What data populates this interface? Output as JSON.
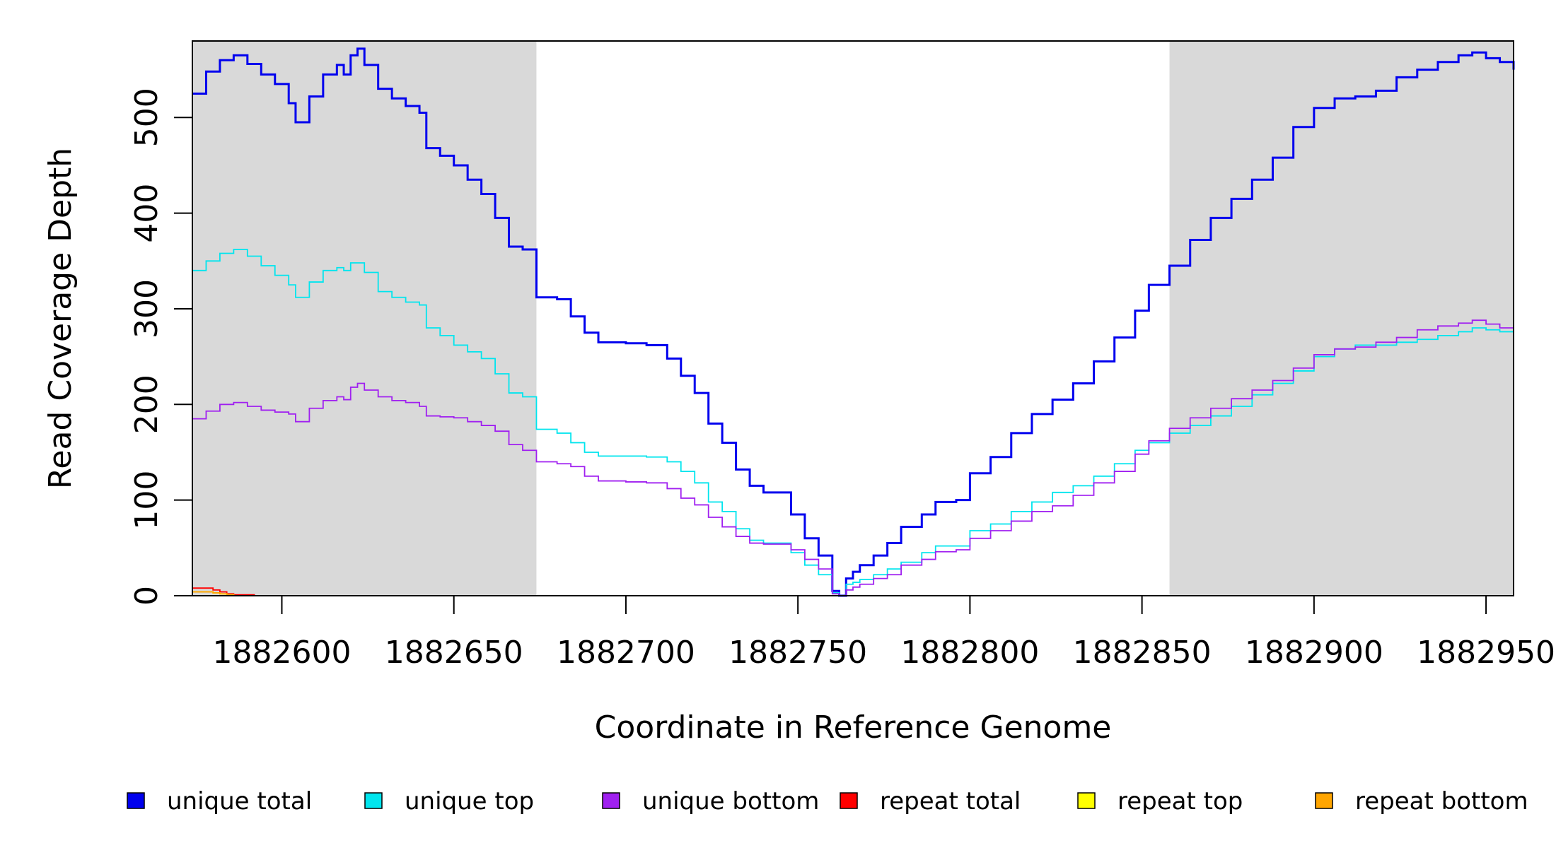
{
  "chart_data": {
    "type": "line",
    "title": "",
    "xlabel": "Coordinate in Reference Genome",
    "ylabel": "Read Coverage Depth",
    "xlim": [
      1882574,
      1882958
    ],
    "ylim": [
      0,
      580
    ],
    "xticks": [
      1882600,
      1882650,
      1882700,
      1882750,
      1882800,
      1882850,
      1882900,
      1882950
    ],
    "yticks": [
      0,
      100,
      200,
      300,
      400,
      500
    ],
    "grid": false,
    "shaded_regions": [
      {
        "x0": 1882574,
        "x1": 1882674,
        "color": "#d9d9d9"
      },
      {
        "x0": 1882858,
        "x1": 1882958,
        "color": "#d9d9d9"
      }
    ],
    "series": [
      {
        "name": "unique total",
        "color": "#0000ee",
        "x": [
          1882574,
          1882578,
          1882582,
          1882586,
          1882590,
          1882594,
          1882598,
          1882602,
          1882604,
          1882608,
          1882612,
          1882616,
          1882618,
          1882620,
          1882622,
          1882624,
          1882628,
          1882632,
          1882636,
          1882640,
          1882642,
          1882646,
          1882650,
          1882654,
          1882658,
          1882662,
          1882666,
          1882670,
          1882674,
          1882680,
          1882684,
          1882688,
          1882692,
          1882700,
          1882706,
          1882712,
          1882716,
          1882720,
          1882724,
          1882728,
          1882732,
          1882736,
          1882740,
          1882744,
          1882748,
          1882752,
          1882756,
          1882760,
          1882762,
          1882764,
          1882766,
          1882768,
          1882772,
          1882776,
          1882780,
          1882786,
          1882790,
          1882796,
          1882800,
          1882806,
          1882812,
          1882818,
          1882824,
          1882830,
          1882836,
          1882842,
          1882848,
          1882852,
          1882858,
          1882864,
          1882870,
          1882876,
          1882882,
          1882888,
          1882894,
          1882900,
          1882906,
          1882912,
          1882918,
          1882924,
          1882930,
          1882936,
          1882942,
          1882946,
          1882950,
          1882954,
          1882958
        ],
        "y": [
          525,
          548,
          560,
          565,
          556,
          545,
          535,
          515,
          495,
          522,
          545,
          555,
          545,
          565,
          572,
          555,
          530,
          520,
          512,
          505,
          468,
          460,
          450,
          435,
          420,
          395,
          365,
          362,
          312,
          310,
          292,
          275,
          265,
          264,
          262,
          248,
          230,
          212,
          180,
          160,
          132,
          115,
          108,
          108,
          85,
          60,
          42,
          5,
          0,
          18,
          25,
          32,
          42,
          55,
          72,
          85,
          98,
          100,
          128,
          145,
          170,
          190,
          205,
          222,
          245,
          270,
          298,
          325,
          345,
          372,
          395,
          415,
          435,
          458,
          490,
          510,
          520,
          522,
          528,
          542,
          550,
          558,
          565,
          568,
          562,
          558,
          550
        ]
      },
      {
        "name": "unique top",
        "color": "#00e5ee",
        "x": [
          1882574,
          1882578,
          1882582,
          1882586,
          1882590,
          1882594,
          1882598,
          1882602,
          1882604,
          1882608,
          1882612,
          1882616,
          1882618,
          1882620,
          1882622,
          1882624,
          1882628,
          1882632,
          1882636,
          1882640,
          1882642,
          1882646,
          1882650,
          1882654,
          1882658,
          1882662,
          1882666,
          1882670,
          1882674,
          1882680,
          1882684,
          1882688,
          1882692,
          1882700,
          1882706,
          1882712,
          1882716,
          1882720,
          1882724,
          1882728,
          1882732,
          1882736,
          1882740,
          1882744,
          1882748,
          1882752,
          1882756,
          1882760,
          1882762,
          1882764,
          1882766,
          1882768,
          1882772,
          1882776,
          1882780,
          1882786,
          1882790,
          1882796,
          1882800,
          1882806,
          1882812,
          1882818,
          1882824,
          1882830,
          1882836,
          1882842,
          1882848,
          1882852,
          1882858,
          1882864,
          1882870,
          1882876,
          1882882,
          1882888,
          1882894,
          1882900,
          1882906,
          1882912,
          1882918,
          1882924,
          1882930,
          1882936,
          1882942,
          1882946,
          1882950,
          1882954,
          1882958
        ],
        "y": [
          340,
          350,
          358,
          362,
          355,
          345,
          335,
          325,
          312,
          328,
          340,
          343,
          340,
          348,
          348,
          338,
          318,
          312,
          307,
          304,
          280,
          272,
          262,
          255,
          248,
          232,
          212,
          208,
          174,
          170,
          160,
          150,
          146,
          146,
          145,
          140,
          130,
          118,
          98,
          88,
          70,
          58,
          55,
          55,
          45,
          32,
          22,
          3,
          0,
          12,
          14,
          17,
          22,
          28,
          35,
          45,
          52,
          52,
          68,
          75,
          88,
          98,
          108,
          115,
          125,
          138,
          152,
          160,
          170,
          178,
          188,
          198,
          210,
          222,
          235,
          250,
          258,
          262,
          262,
          265,
          268,
          272,
          276,
          280,
          278,
          276,
          272
        ]
      },
      {
        "name": "unique bottom",
        "color": "#a020f0",
        "x": [
          1882574,
          1882578,
          1882582,
          1882586,
          1882590,
          1882594,
          1882598,
          1882602,
          1882604,
          1882608,
          1882612,
          1882616,
          1882618,
          1882620,
          1882622,
          1882624,
          1882628,
          1882632,
          1882636,
          1882640,
          1882642,
          1882646,
          1882650,
          1882654,
          1882658,
          1882662,
          1882666,
          1882670,
          1882674,
          1882680,
          1882684,
          1882688,
          1882692,
          1882700,
          1882706,
          1882712,
          1882716,
          1882720,
          1882724,
          1882728,
          1882732,
          1882736,
          1882740,
          1882744,
          1882748,
          1882752,
          1882756,
          1882760,
          1882762,
          1882764,
          1882766,
          1882768,
          1882772,
          1882776,
          1882780,
          1882786,
          1882790,
          1882796,
          1882800,
          1882806,
          1882812,
          1882818,
          1882824,
          1882830,
          1882836,
          1882842,
          1882848,
          1882852,
          1882858,
          1882864,
          1882870,
          1882876,
          1882882,
          1882888,
          1882894,
          1882900,
          1882906,
          1882912,
          1882918,
          1882924,
          1882930,
          1882936,
          1882942,
          1882946,
          1882950,
          1882954,
          1882958
        ],
        "y": [
          185,
          193,
          200,
          202,
          198,
          194,
          192,
          190,
          182,
          196,
          204,
          208,
          205,
          218,
          222,
          215,
          208,
          204,
          202,
          198,
          188,
          187,
          186,
          182,
          178,
          172,
          158,
          152,
          140,
          138,
          135,
          125,
          120,
          119,
          118,
          112,
          102,
          95,
          82,
          72,
          62,
          55,
          54,
          54,
          48,
          38,
          28,
          2,
          0,
          6,
          9,
          12,
          18,
          22,
          32,
          38,
          46,
          48,
          60,
          68,
          78,
          88,
          94,
          105,
          118,
          130,
          148,
          162,
          175,
          186,
          196,
          206,
          215,
          225,
          238,
          252,
          258,
          260,
          265,
          270,
          278,
          282,
          285,
          288,
          284,
          280,
          276
        ]
      },
      {
        "name": "repeat total",
        "color": "#ff0000",
        "x": [
          1882574,
          1882578,
          1882580,
          1882582,
          1882584,
          1882586,
          1882592,
          1882958
        ],
        "y": [
          8,
          8,
          6,
          4,
          2,
          1,
          0,
          0
        ]
      },
      {
        "name": "repeat top",
        "color": "#ffff00",
        "x": [
          1882574,
          1882578,
          1882580,
          1882582,
          1882584,
          1882586,
          1882592,
          1882958
        ],
        "y": [
          4,
          4,
          3,
          2,
          1,
          0,
          0,
          0
        ]
      },
      {
        "name": "repeat bottom",
        "color": "#ffa500",
        "x": [
          1882574,
          1882578,
          1882580,
          1882582,
          1882584,
          1882586,
          1882592,
          1882958
        ],
        "y": [
          4,
          4,
          3,
          2,
          1,
          0,
          0,
          0
        ]
      }
    ],
    "legend_placement": "bottom"
  }
}
